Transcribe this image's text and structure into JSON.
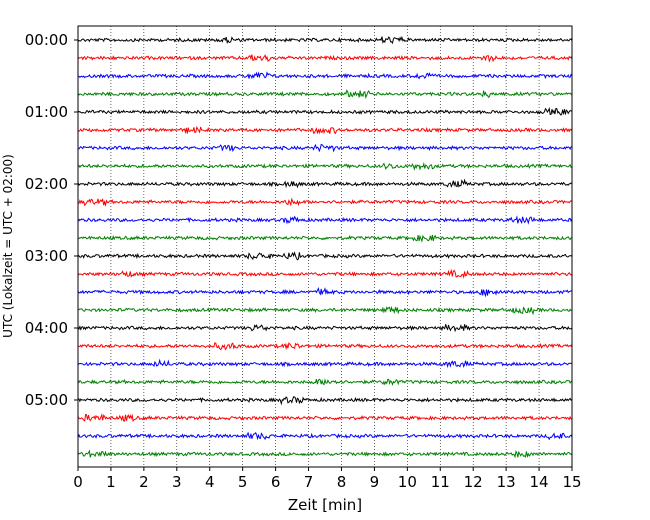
{
  "chart_data": {
    "type": "line",
    "title": "",
    "xlabel": "Zeit  [min]",
    "ylabel": "UTC (Lokalzeit = UTC + 02:00)",
    "xlim": [
      0,
      15
    ],
    "x_ticks": [
      0,
      1,
      2,
      3,
      4,
      5,
      6,
      7,
      8,
      9,
      10,
      11,
      12,
      13,
      14,
      15
    ],
    "x_grid": "dotted vertical lines at each minute",
    "y_tick_labels": [
      "00:00",
      "01:00",
      "02:00",
      "03:00",
      "04:00",
      "05:00"
    ],
    "trace_minutes": 15,
    "traces_per_hour": 4,
    "trace_start_times": [
      "00:00",
      "00:15",
      "00:30",
      "00:45",
      "01:00",
      "01:15",
      "01:30",
      "01:45",
      "02:00",
      "02:15",
      "02:30",
      "02:45",
      "03:00",
      "03:15",
      "03:30",
      "03:45",
      "04:00",
      "04:15",
      "04:30",
      "04:45",
      "05:00",
      "05:15",
      "05:30",
      "05:45"
    ],
    "trace_colors": [
      "#000000",
      "#ff0000",
      "#0000ff",
      "#008000"
    ],
    "legend": "none"
  }
}
